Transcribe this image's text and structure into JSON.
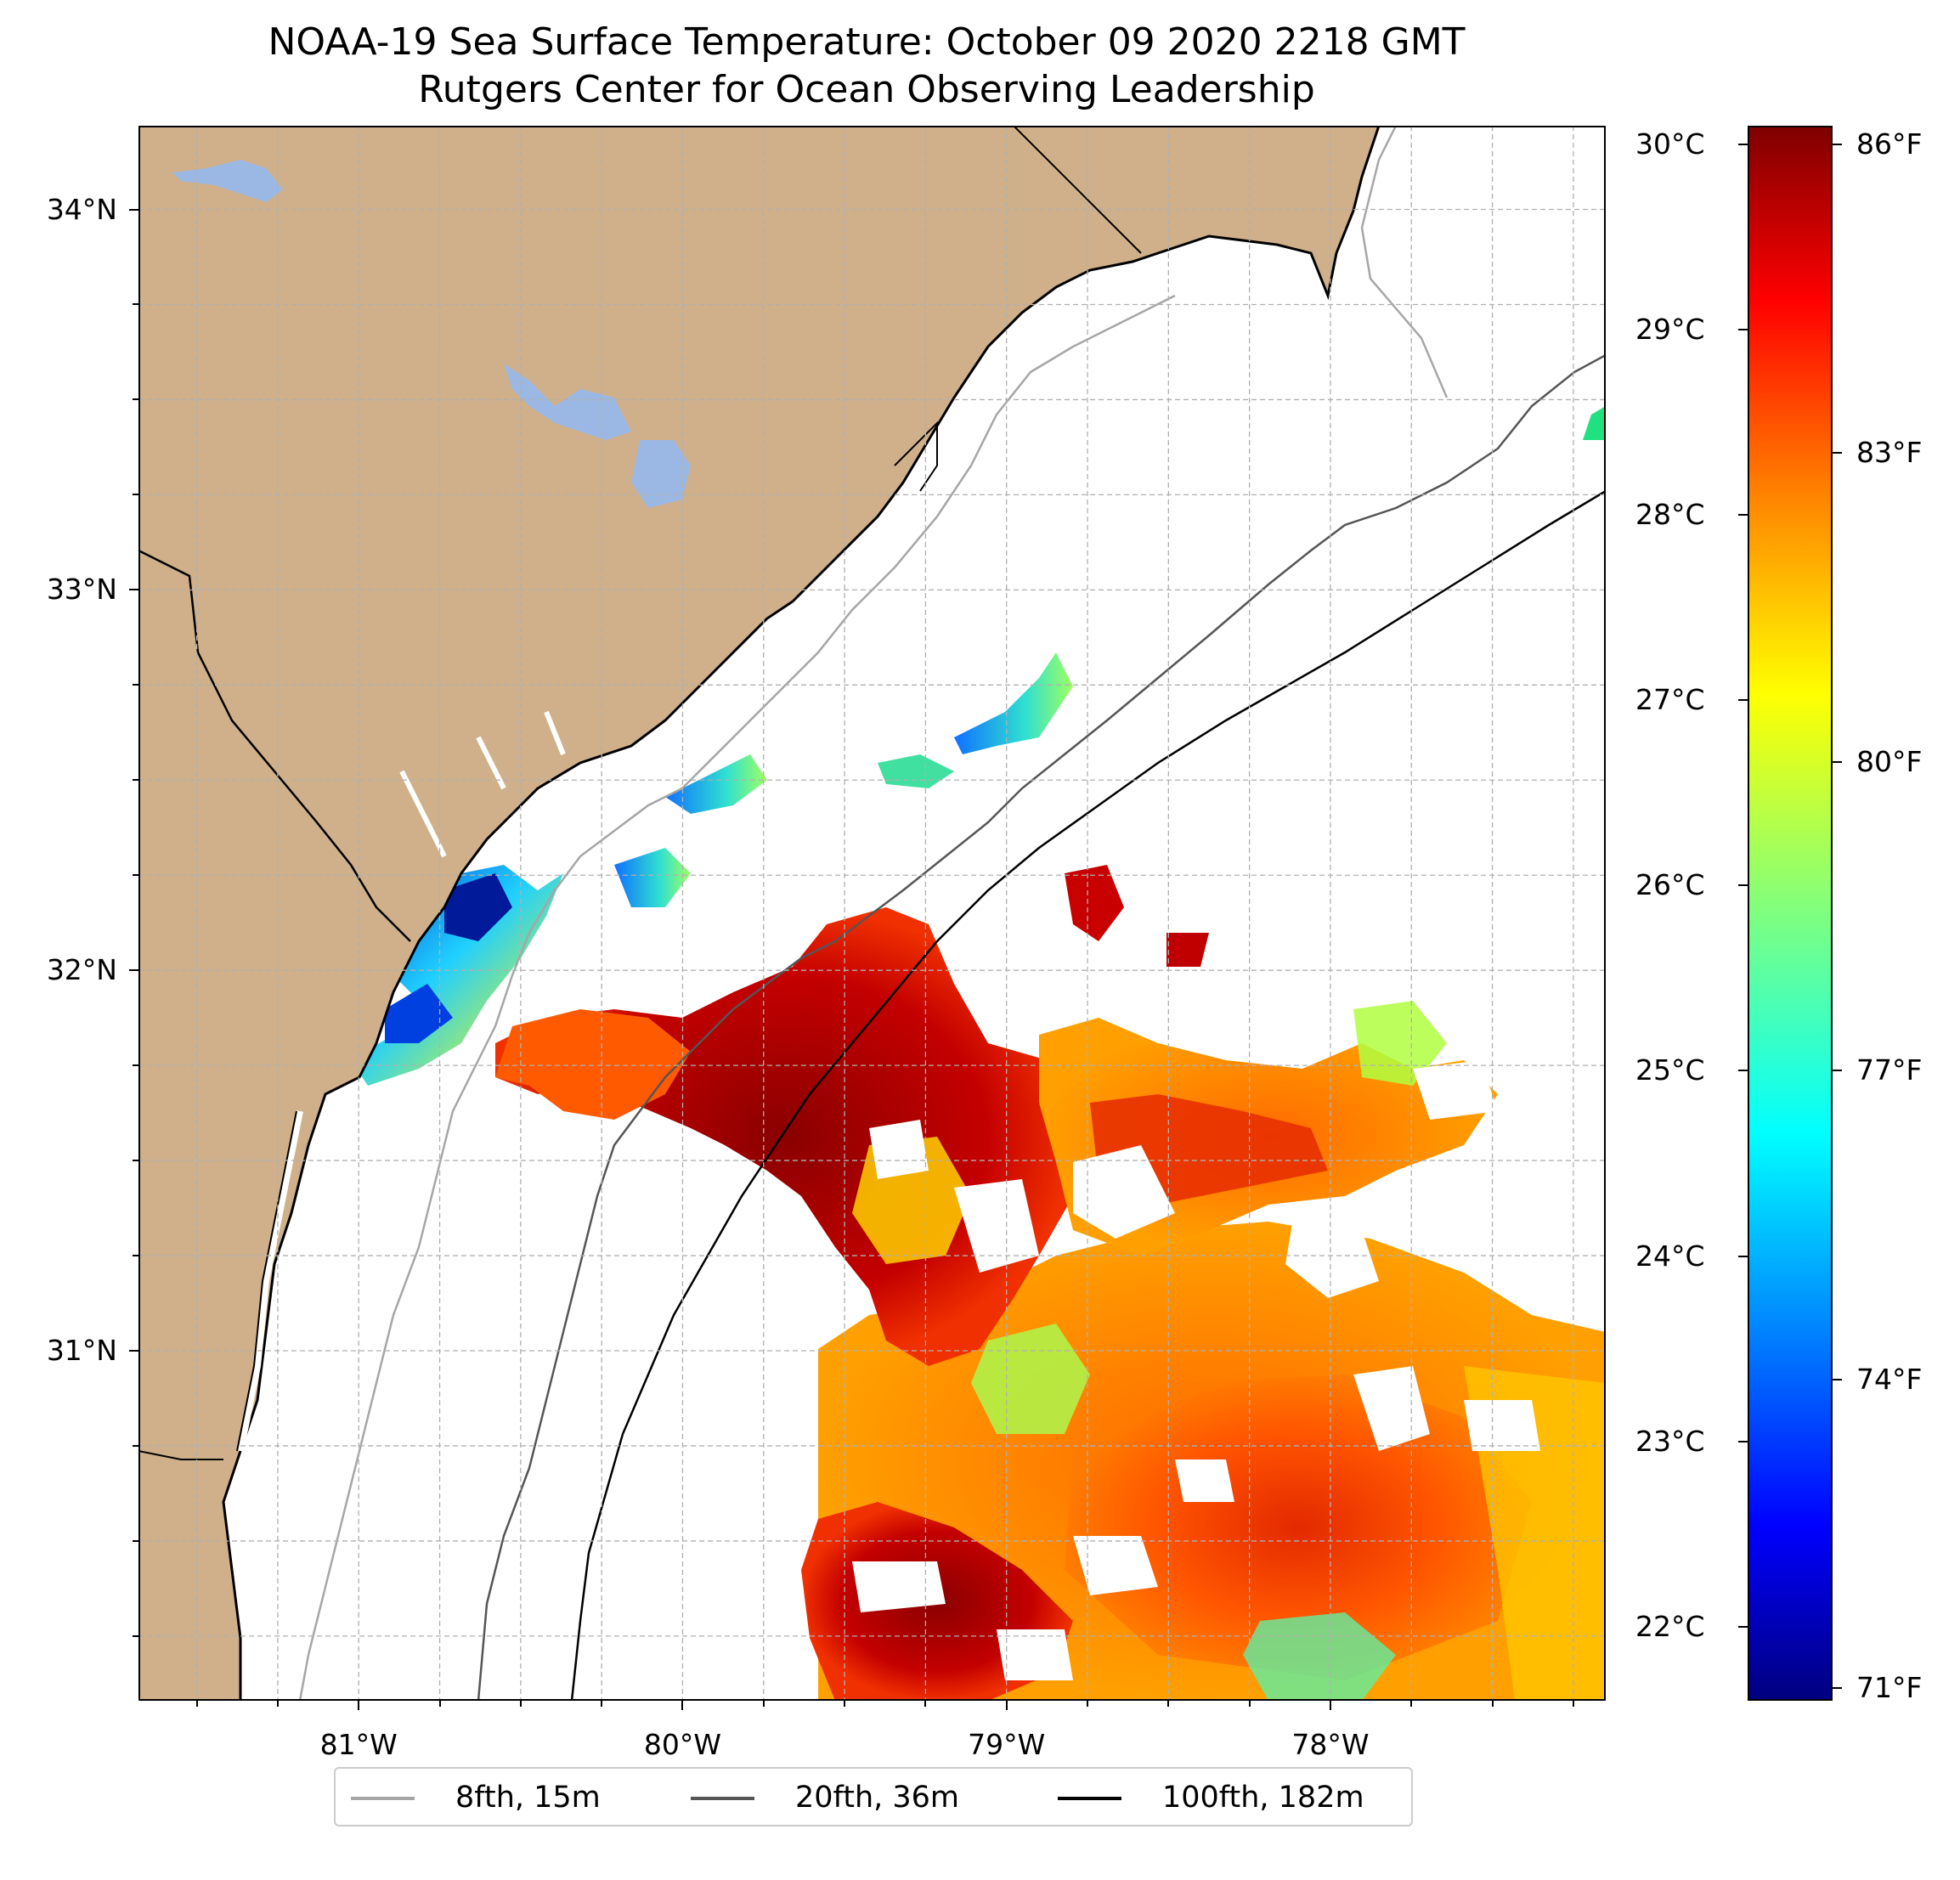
{
  "title": "NOAA-19 Sea Surface Temperature: October 09 2020 2218 GMT",
  "subtitle": "Rutgers Center for Ocean Observing Leadership",
  "map": {
    "lon_range": [
      -81.68,
      -77.15
    ],
    "lat_range": [
      30.08,
      34.22
    ],
    "lat_ticks": [
      {
        "value": 34,
        "label": "34°N"
      },
      {
        "value": 33,
        "label": "33°N"
      },
      {
        "value": 32,
        "label": "32°N"
      },
      {
        "value": 31,
        "label": "31°N"
      }
    ],
    "lon_ticks": [
      {
        "value": -81,
        "label": "81°W"
      },
      {
        "value": -80,
        "label": "80°W"
      },
      {
        "value": -79,
        "label": "79°W"
      },
      {
        "value": -78,
        "label": "78°W"
      }
    ],
    "grid": true,
    "colors": {
      "land": "#cfb08a",
      "ocean": "#ffffff",
      "lakes": "#9bb8e4",
      "grid": "#b0b0b0"
    }
  },
  "colorbar": {
    "colormap": "jet",
    "range_c": [
      21.6,
      30.1
    ],
    "celsius_ticks": [
      {
        "value": 30,
        "label": "30°C"
      },
      {
        "value": 29,
        "label": "29°C"
      },
      {
        "value": 28,
        "label": "28°C"
      },
      {
        "value": 27,
        "label": "27°C"
      },
      {
        "value": 26,
        "label": "26°C"
      },
      {
        "value": 25,
        "label": "25°C"
      },
      {
        "value": 24,
        "label": "24°C"
      },
      {
        "value": 23,
        "label": "23°C"
      },
      {
        "value": 22,
        "label": "22°C"
      }
    ],
    "fahrenheit_ticks": [
      {
        "value": 86,
        "label": "86°F"
      },
      {
        "value": 83,
        "label": "83°F"
      },
      {
        "value": 80,
        "label": "80°F"
      },
      {
        "value": 77,
        "label": "77°F"
      },
      {
        "value": 74,
        "label": "74°F"
      },
      {
        "value": 71,
        "label": "71°F"
      }
    ]
  },
  "legend": {
    "placement": "bottom-center",
    "items": [
      {
        "label": "8fth, 15m",
        "color": "#a6a6a6"
      },
      {
        "label": "20fth, 36m",
        "color": "#555555"
      },
      {
        "label": "100fth, 182m",
        "color": "#000000"
      }
    ]
  }
}
